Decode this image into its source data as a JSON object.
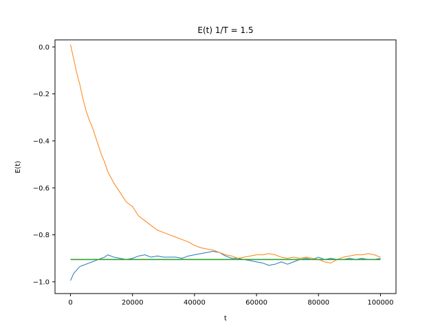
{
  "chart_data": {
    "type": "line",
    "title": "E(t) 1/T = 1.5",
    "xlabel": "t",
    "ylabel": "E(t)",
    "xlim": [
      -5000,
      105000
    ],
    "ylim": [
      -1.05,
      0.03
    ],
    "xticks": [
      0,
      20000,
      40000,
      60000,
      80000,
      100000
    ],
    "xtick_labels": [
      "0",
      "20000",
      "40000",
      "60000",
      "80000",
      "100000"
    ],
    "yticks": [
      0.0,
      -0.2,
      -0.4,
      -0.6,
      -0.8,
      -1.0
    ],
    "ytick_labels": [
      "0.0",
      "−0.2",
      "−0.4",
      "−0.6",
      "−0.8",
      "−1.0"
    ],
    "grid": false,
    "legend": "none",
    "series": [
      {
        "color": "#1f77b4",
        "x": [
          0,
          500,
          1000,
          2000,
          3000,
          4000,
          5000,
          6000,
          7000,
          8000,
          9000,
          10000,
          11000,
          12000,
          14000,
          16000,
          18000,
          20000,
          22000,
          24000,
          26000,
          28000,
          30000,
          32000,
          34000,
          36000,
          38000,
          40000,
          42000,
          44000,
          46000,
          48000,
          50000,
          52000,
          54000,
          56000,
          58000,
          60000,
          62000,
          64000,
          66000,
          68000,
          70000,
          72000,
          74000,
          76000,
          78000,
          80000,
          82000,
          84000,
          86000,
          88000,
          90000,
          92000,
          94000,
          96000,
          98000,
          100000
        ],
        "y": [
          -0.995,
          -0.98,
          -0.965,
          -0.95,
          -0.935,
          -0.93,
          -0.925,
          -0.92,
          -0.915,
          -0.91,
          -0.905,
          -0.9,
          -0.895,
          -0.885,
          -0.895,
          -0.9,
          -0.905,
          -0.9,
          -0.89,
          -0.885,
          -0.895,
          -0.89,
          -0.895,
          -0.895,
          -0.895,
          -0.9,
          -0.89,
          -0.885,
          -0.88,
          -0.875,
          -0.87,
          -0.875,
          -0.89,
          -0.9,
          -0.9,
          -0.905,
          -0.91,
          -0.915,
          -0.92,
          -0.93,
          -0.925,
          -0.915,
          -0.925,
          -0.915,
          -0.905,
          -0.9,
          -0.905,
          -0.895,
          -0.905,
          -0.9,
          -0.905,
          -0.905,
          -0.9,
          -0.905,
          -0.9,
          -0.905,
          -0.905,
          -0.9
        ]
      },
      {
        "color": "#ff7f0e",
        "x": [
          0,
          1000,
          2000,
          3000,
          4000,
          5000,
          6000,
          7000,
          8000,
          9000,
          10000,
          11000,
          12000,
          14000,
          16000,
          18000,
          20000,
          22000,
          24000,
          26000,
          28000,
          30000,
          32000,
          34000,
          36000,
          38000,
          40000,
          42000,
          44000,
          46000,
          48000,
          50000,
          52000,
          54000,
          56000,
          58000,
          60000,
          62000,
          64000,
          66000,
          68000,
          70000,
          72000,
          74000,
          76000,
          78000,
          80000,
          82000,
          84000,
          86000,
          88000,
          90000,
          92000,
          94000,
          96000,
          98000,
          100000
        ],
        "y": [
          0.01,
          -0.05,
          -0.11,
          -0.16,
          -0.22,
          -0.27,
          -0.31,
          -0.34,
          -0.38,
          -0.42,
          -0.46,
          -0.49,
          -0.53,
          -0.58,
          -0.62,
          -0.66,
          -0.68,
          -0.72,
          -0.74,
          -0.76,
          -0.78,
          -0.79,
          -0.8,
          -0.81,
          -0.82,
          -0.83,
          -0.845,
          -0.855,
          -0.86,
          -0.865,
          -0.875,
          -0.885,
          -0.89,
          -0.9,
          -0.895,
          -0.89,
          -0.885,
          -0.885,
          -0.88,
          -0.885,
          -0.895,
          -0.9,
          -0.895,
          -0.9,
          -0.895,
          -0.9,
          -0.905,
          -0.915,
          -0.92,
          -0.905,
          -0.895,
          -0.89,
          -0.885,
          -0.885,
          -0.88,
          -0.885,
          -0.895
        ]
      },
      {
        "color": "#2ca02c",
        "x": [
          0,
          100000
        ],
        "y": [
          -0.905,
          -0.905
        ]
      }
    ]
  }
}
